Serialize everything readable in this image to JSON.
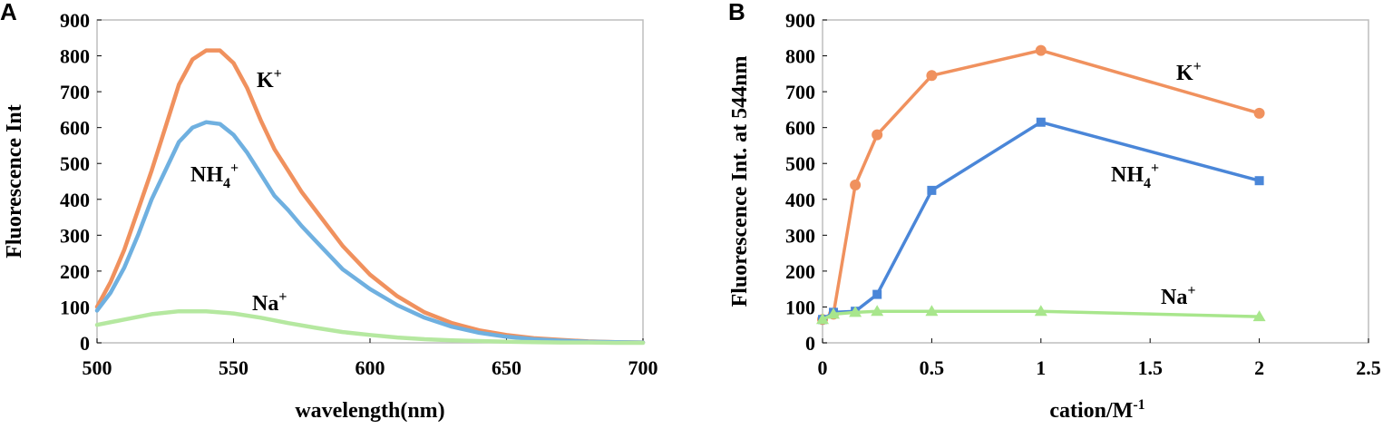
{
  "chart_data": [
    {
      "panel": "A",
      "type": "line",
      "xlabel": "wavelength(nm)",
      "ylabel": "Fluorescence Int",
      "xlim": [
        500,
        700
      ],
      "ylim": [
        0,
        900
      ],
      "xticks": [
        500,
        550,
        600,
        650,
        700
      ],
      "yticks": [
        0,
        100,
        200,
        300,
        400,
        500,
        600,
        700,
        800,
        900
      ],
      "grid": false,
      "series": [
        {
          "name": "K+",
          "label_base": "K",
          "label_sup": "+",
          "label_sub": "",
          "color": "#f0915e",
          "x": [
            500,
            505,
            510,
            515,
            520,
            525,
            530,
            535,
            540,
            545,
            550,
            555,
            560,
            565,
            570,
            575,
            580,
            590,
            600,
            610,
            620,
            630,
            640,
            650,
            660,
            670,
            680,
            690,
            700
          ],
          "y": [
            100,
            170,
            260,
            370,
            480,
            600,
            720,
            790,
            815,
            815,
            780,
            710,
            620,
            540,
            480,
            420,
            370,
            270,
            190,
            130,
            85,
            55,
            35,
            22,
            13,
            8,
            4,
            2,
            1
          ]
        },
        {
          "name": "NH4+",
          "label_base": "NH",
          "label_sup": "+",
          "label_sub": "4",
          "color": "#6fb0e0",
          "x": [
            500,
            505,
            510,
            515,
            520,
            525,
            530,
            535,
            540,
            545,
            550,
            555,
            560,
            565,
            570,
            575,
            580,
            590,
            600,
            610,
            620,
            630,
            640,
            650,
            660,
            670,
            680,
            690,
            700
          ],
          "y": [
            90,
            140,
            210,
            300,
            400,
            480,
            560,
            600,
            615,
            610,
            580,
            530,
            470,
            410,
            370,
            325,
            285,
            205,
            150,
            105,
            70,
            45,
            28,
            17,
            10,
            6,
            3,
            2,
            1
          ]
        },
        {
          "name": "Na+",
          "label_base": "Na",
          "label_sup": "+",
          "label_sub": "",
          "color": "#b5e8a0",
          "x": [
            500,
            510,
            520,
            530,
            540,
            550,
            560,
            570,
            580,
            590,
            600,
            610,
            620,
            630,
            640,
            650,
            660,
            670,
            680,
            690,
            700
          ],
          "y": [
            50,
            65,
            80,
            88,
            88,
            82,
            70,
            55,
            42,
            30,
            22,
            15,
            10,
            7,
            5,
            3,
            2,
            1,
            1,
            0,
            0
          ]
        }
      ]
    },
    {
      "panel": "B",
      "type": "line",
      "xlabel": "cation/M",
      "xlabel_sup": "-1",
      "ylabel": "Fluorescence Int. at 544nm",
      "xlim": [
        0,
        2.5
      ],
      "ylim": [
        0,
        900
      ],
      "xticks": [
        0,
        0.5,
        1,
        1.5,
        2,
        2.5
      ],
      "yticks": [
        0,
        100,
        200,
        300,
        400,
        500,
        600,
        700,
        800,
        900
      ],
      "grid": false,
      "series": [
        {
          "name": "K+",
          "label_base": "K",
          "label_sup": "+",
          "label_sub": "",
          "color": "#f0915e",
          "marker": "circle",
          "x": [
            0,
            0.05,
            0.15,
            0.25,
            0.5,
            1,
            2
          ],
          "y": [
            65,
            80,
            440,
            580,
            745,
            815,
            640
          ]
        },
        {
          "name": "NH4+",
          "label_base": "NH",
          "label_sup": "+",
          "label_sub": "4",
          "color": "#4a86d8",
          "marker": "square",
          "x": [
            0,
            0.05,
            0.15,
            0.25,
            0.5,
            1,
            2
          ],
          "y": [
            65,
            85,
            88,
            135,
            425,
            615,
            452
          ]
        },
        {
          "name": "Na+",
          "label_base": "Na",
          "label_sup": "+",
          "label_sub": "",
          "color": "#a8e68c",
          "marker": "triangle",
          "x": [
            0,
            0.05,
            0.15,
            0.25,
            0.5,
            1,
            2
          ],
          "y": [
            65,
            80,
            85,
            88,
            88,
            88,
            73
          ]
        }
      ]
    }
  ]
}
